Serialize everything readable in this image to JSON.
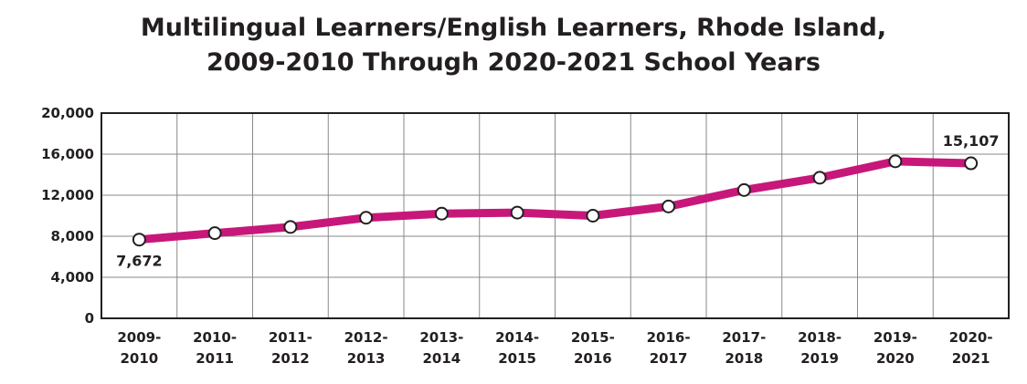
{
  "chart_data": {
    "type": "line",
    "title_line1": "Multilingual Learners/English Learners, Rhode Island,",
    "title_line2": "2009-2010 Through 2020-2021 School Years",
    "xlabel": "",
    "ylabel": "",
    "ylim": [
      0,
      20000
    ],
    "yticks": [
      0,
      4000,
      8000,
      12000,
      16000,
      20000
    ],
    "ytick_labels": [
      "0",
      "4,000",
      "8,000",
      "12,000",
      "16,000",
      "20,000"
    ],
    "categories": [
      [
        "2009-",
        "2010"
      ],
      [
        "2010-",
        "2011"
      ],
      [
        "2011-",
        "2012"
      ],
      [
        "2012-",
        "2013"
      ],
      [
        "2013-",
        "2014"
      ],
      [
        "2014-",
        "2015"
      ],
      [
        "2015-",
        "2016"
      ],
      [
        "2016-",
        "2017"
      ],
      [
        "2017-",
        "2018"
      ],
      [
        "2018-",
        "2019"
      ],
      [
        "2019-",
        "2020"
      ],
      [
        "2020-",
        "2021"
      ]
    ],
    "series": [
      {
        "values": [
          7672,
          8300,
          8900,
          9800,
          10200,
          10300,
          10000,
          10900,
          12500,
          13700,
          15300,
          15107
        ],
        "color": "#c7177a"
      }
    ],
    "data_labels": [
      {
        "index": 0,
        "text": "7,672",
        "placement": "below"
      },
      {
        "index": 11,
        "text": "15,107",
        "placement": "above"
      }
    ],
    "grid": true,
    "legend": "none"
  }
}
